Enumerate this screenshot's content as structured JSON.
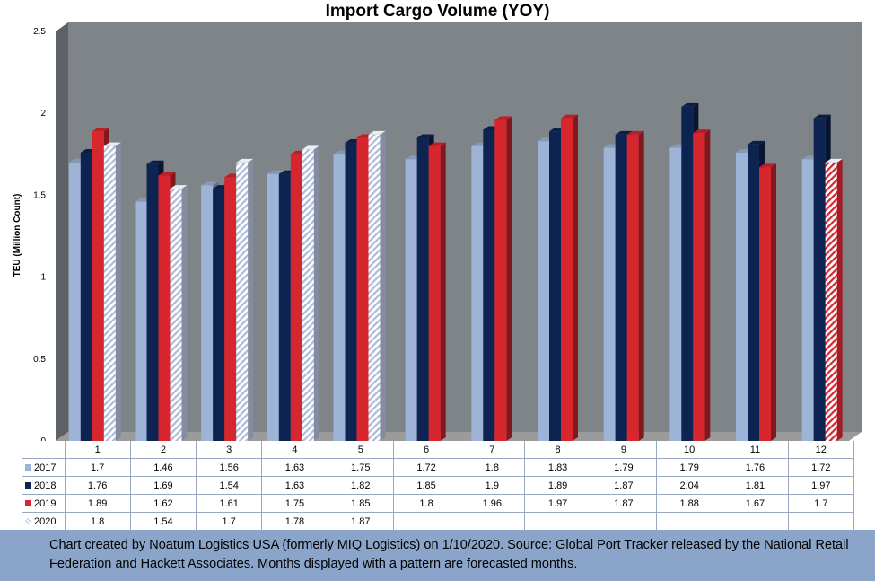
{
  "colors": {
    "2017": "#9db4d6",
    "2018": "#0d2352",
    "2019": "#d8262e",
    "2020": "#c9d3e6",
    "plot_back": "#7f8489",
    "floor": "#9b9b9b",
    "footnote_bg": "#8aa5c9"
  },
  "chart_data": {
    "type": "bar",
    "title": "Import Cargo Volume (YOY)",
    "ylabel": "TEU (Million Count)",
    "xlabel": "",
    "ylim": [
      0,
      2.5
    ],
    "yticks": [
      "0",
      "0.5",
      "1",
      "1.5",
      "2",
      "2.5"
    ],
    "categories": [
      "1",
      "2",
      "3",
      "4",
      "5",
      "6",
      "7",
      "8",
      "9",
      "10",
      "11",
      "12"
    ],
    "series": [
      {
        "name": "2017",
        "values": [
          1.7,
          1.46,
          1.56,
          1.63,
          1.75,
          1.72,
          1.8,
          1.83,
          1.79,
          1.79,
          1.76,
          1.72
        ],
        "labels": [
          "1.7",
          "1.46",
          "1.56",
          "1.63",
          "1.75",
          "1.72",
          "1.8",
          "1.83",
          "1.79",
          "1.79",
          "1.76",
          "1.72"
        ]
      },
      {
        "name": "2018",
        "values": [
          1.76,
          1.69,
          1.54,
          1.63,
          1.82,
          1.85,
          1.9,
          1.89,
          1.87,
          2.04,
          1.81,
          1.97
        ],
        "labels": [
          "1.76",
          "1.69",
          "1.54",
          "1.63",
          "1.82",
          "1.85",
          "1.9",
          "1.89",
          "1.87",
          "2.04",
          "1.81",
          "1.97"
        ]
      },
      {
        "name": "2019",
        "values": [
          1.89,
          1.62,
          1.61,
          1.75,
          1.85,
          1.8,
          1.96,
          1.97,
          1.87,
          1.88,
          1.67,
          1.7
        ],
        "labels": [
          "1.89",
          "1.62",
          "1.61",
          "1.75",
          "1.85",
          "1.8",
          "1.96",
          "1.97",
          "1.87",
          "1.88",
          "1.67",
          "1.7"
        ],
        "forecast_months": [
          "12"
        ]
      },
      {
        "name": "2020",
        "values": [
          1.8,
          1.54,
          1.7,
          1.78,
          1.87,
          null,
          null,
          null,
          null,
          null,
          null,
          null
        ],
        "labels": [
          "1.8",
          "1.54",
          "1.7",
          "1.78",
          "1.87",
          "",
          "",
          "",
          "",
          "",
          "",
          ""
        ],
        "forecast_months": [
          "1",
          "2",
          "3",
          "4",
          "5"
        ]
      }
    ],
    "legend": "table-below",
    "grid": false
  },
  "footnote": "Chart created by Noatum Logistics USA (formerly MIQ Logistics) on 1/10/2020. Source: Global Port Tracker released by the National Retail Federation and Hackett Associates. Months displayed with a pattern are forecasted months."
}
